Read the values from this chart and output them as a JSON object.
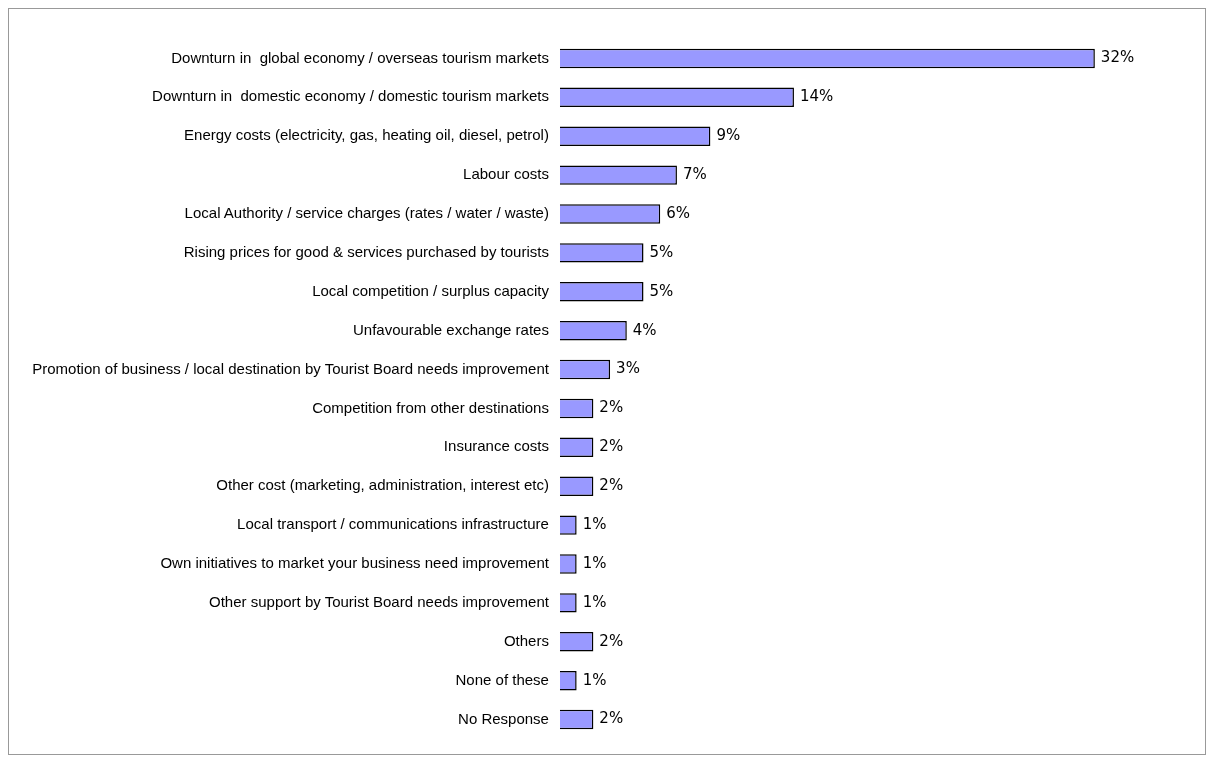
{
  "chart_data": {
    "type": "bar",
    "orientation": "horizontal",
    "categories": [
      "Downturn in  global economy / overseas tourism markets",
      "Downturn in  domestic economy / domestic tourism markets",
      "Energy costs (electricity, gas, heating oil, diesel, petrol)",
      "Labour costs",
      "Local Authority / service charges (rates / water / waste)",
      "Rising prices for good & services purchased by tourists",
      "Local competition / surplus capacity",
      "Unfavourable exchange rates",
      "Promotion of business / local destination by Tourist Board needs improvement",
      "Competition from other destinations",
      "Insurance costs",
      "Other cost (marketing, administration, interest etc)",
      "Local transport / communications infrastructure",
      "Own initiatives to market your business need improvement",
      "Other support by Tourist Board needs improvement",
      "Others",
      "None of these",
      "No Response"
    ],
    "values": [
      32,
      14,
      9,
      7,
      6,
      5,
      5,
      4,
      3,
      2,
      2,
      2,
      1,
      1,
      1,
      2,
      1,
      2
    ],
    "value_labels": [
      "32%",
      "14%",
      "9%",
      "7%",
      "6%",
      "5%",
      "5%",
      "4%",
      "3%",
      "2%",
      "2%",
      "2%",
      "1%",
      "1%",
      "1%",
      "2%",
      "1%",
      "2%"
    ],
    "color": "#9999ff",
    "legend": false
  }
}
